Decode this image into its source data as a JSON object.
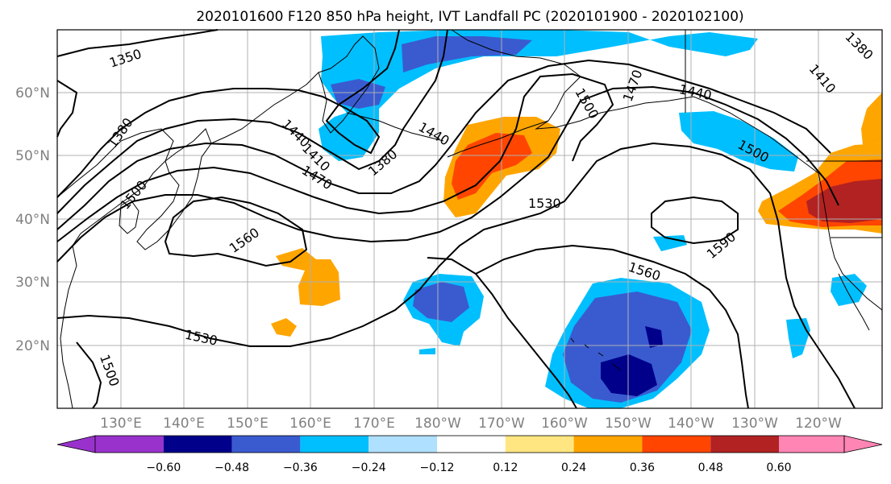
{
  "title": "2020101600 F120 850 hPa height, IVT Landfall PC (2020101900 - 2020102100)",
  "map": {
    "lat_labels": [
      "60°N",
      "50°N",
      "40°N",
      "30°N",
      "20°N"
    ],
    "lon_labels": [
      "130°E",
      "140°E",
      "150°E",
      "160°E",
      "170°E",
      "180°W",
      "170°W",
      "160°W",
      "150°W",
      "140°W",
      "130°W",
      "120°W"
    ],
    "contour_labels": [
      "1350",
      "1380",
      "1500",
      "1440",
      "1410",
      "1380",
      "1440",
      "1470",
      "1560",
      "1530",
      "1470",
      "1500",
      "1440",
      "1500",
      "1410",
      "1380",
      "1590",
      "1560",
      "1530",
      "1500"
    ],
    "colors": {
      "neg_060_plus": "#9932cc",
      "neg_048": "#00008b",
      "neg_036": "#3a5bd0",
      "neg_024": "#00bfff",
      "neg_012": "#b0e0ff",
      "pos_012": "#ffe680",
      "pos_024": "#ffa500",
      "pos_036": "#ff4500",
      "pos_048": "#b22222",
      "pos_060_plus": "#ff85b5"
    }
  },
  "colorbar": {
    "ticks": [
      "−0.60",
      "−0.48",
      "−0.36",
      "−0.24",
      "−0.12",
      "0.12",
      "0.24",
      "0.36",
      "0.48",
      "0.60"
    ],
    "colors": [
      "#9932cc",
      "#00008b",
      "#3a5bd0",
      "#00bfff",
      "#b0e0ff",
      "#ffffff",
      "#ffe680",
      "#ffa500",
      "#ff4500",
      "#b22222",
      "#ff85b5"
    ]
  }
}
